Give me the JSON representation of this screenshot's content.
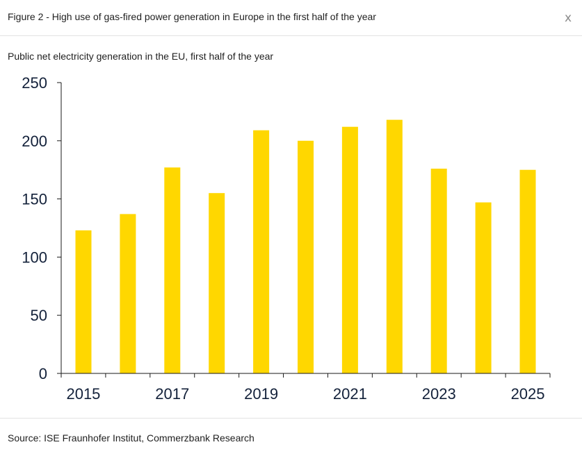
{
  "header": {
    "figure_title": "Figure 2 - High use of gas-fired power generation in Europe in the first half of the year",
    "close_label": "x"
  },
  "subtitle": "Public net electricity generation in the EU, first half of the year",
  "footer": {
    "source": "Source: ISE Fraunhofer Institut, Commerzbank Research"
  },
  "colors": {
    "bar": "#FFD700",
    "axis": "#1a1a1a",
    "tick_text": "#13213a"
  },
  "chart_data": {
    "type": "bar",
    "title": "Public net electricity generation in the EU, first half of the year",
    "xlabel": "",
    "ylabel": "",
    "categories": [
      "2015",
      "2016",
      "2017",
      "2018",
      "2019",
      "2020",
      "2021",
      "2022",
      "2023",
      "2024",
      "2025"
    ],
    "values": [
      123,
      137,
      177,
      155,
      209,
      200,
      212,
      218,
      176,
      147,
      175
    ],
    "x_tick_labels": [
      "2015",
      "2017",
      "2019",
      "2021",
      "2023",
      "2025"
    ],
    "y_ticks": [
      0,
      50,
      100,
      150,
      200,
      250
    ],
    "ylim": [
      0,
      250
    ],
    "grid": false,
    "legend": "none"
  }
}
